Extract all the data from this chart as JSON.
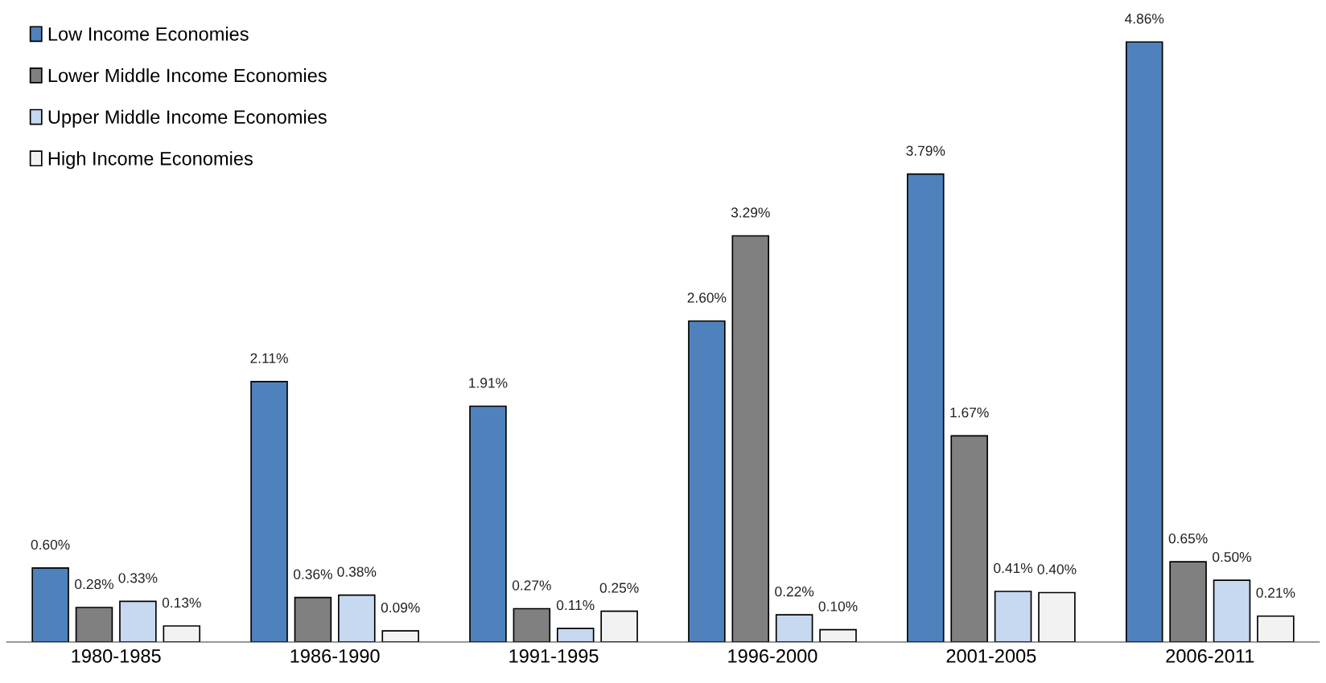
{
  "chart_data": {
    "type": "bar",
    "categories": [
      "1980-1985",
      "1986-1990",
      "1991-1995",
      "1996-2000",
      "2001-2005",
      "2006-2011"
    ],
    "series": [
      {
        "name": "Low Income Economies",
        "color": "#4f81bd",
        "values": [
          0.6,
          2.11,
          1.91,
          2.6,
          3.79,
          4.86
        ],
        "value_labels": [
          "0.60%",
          "2.11%",
          "1.91%",
          "2.60%",
          "3.79%",
          "4.86%"
        ]
      },
      {
        "name": "Lower Middle Income Economies",
        "color": "#808080",
        "values": [
          0.28,
          0.36,
          0.27,
          3.29,
          1.67,
          0.65
        ],
        "value_labels": [
          "0.28%",
          "0.36%",
          "0.27%",
          "3.29%",
          "1.67%",
          "0.65%"
        ]
      },
      {
        "name": "Upper Middle Income Economies",
        "color": "#c6d9f1",
        "values": [
          0.33,
          0.38,
          0.11,
          0.22,
          0.41,
          0.5
        ],
        "value_labels": [
          "0.33%",
          "0.38%",
          "0.11%",
          "0.22%",
          "0.41%",
          "0.50%"
        ]
      },
      {
        "name": "High Income Economies",
        "color": "#f2f2f2",
        "values": [
          0.13,
          0.09,
          0.25,
          0.1,
          0.4,
          0.21
        ],
        "value_labels": [
          "0.13%",
          "0.09%",
          "0.25%",
          "0.10%",
          "0.40%",
          "0.21%"
        ]
      }
    ],
    "tick_labels": "x",
    "grid": false,
    "legend": "top left"
  }
}
